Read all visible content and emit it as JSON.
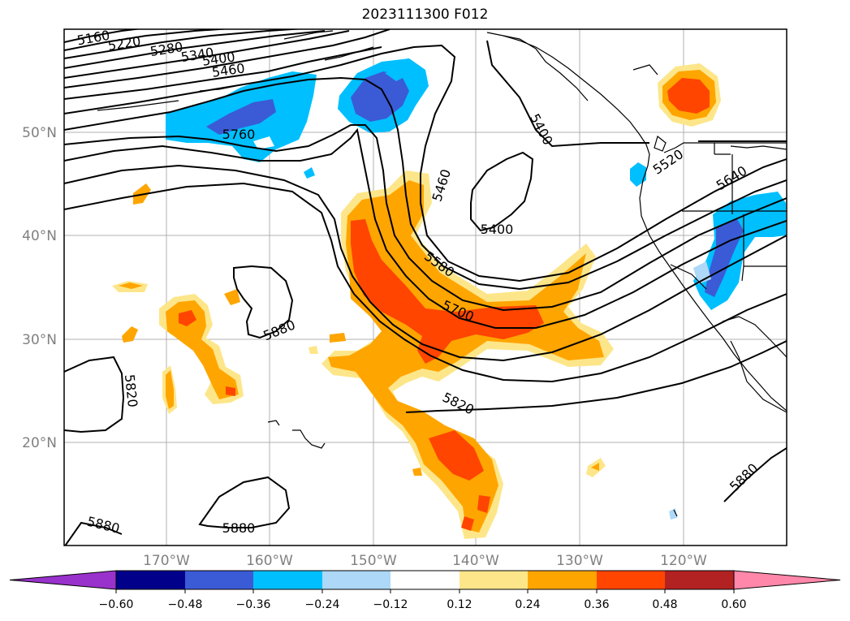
{
  "title": "2023111300 F012",
  "map": {
    "lat_labels": [
      "50°N",
      "40°N",
      "30°N",
      "20°N"
    ],
    "lon_labels": [
      "170°W",
      "160°W",
      "150°W",
      "140°W",
      "130°W",
      "120°W"
    ],
    "contour_labels": [
      "5160",
      "5220",
      "5280",
      "5340",
      "5400",
      "5460",
      "5760",
      "5400",
      "5460",
      "5400",
      "5520",
      "5640",
      "5580",
      "5700",
      "5880",
      "5820",
      "5820",
      "5880",
      "5880",
      "5880"
    ],
    "fill_colors": {
      "pos_012": "#fde68a",
      "pos_024": "#ffa500",
      "pos_036": "#ff4500",
      "neg_024": "#00bfff",
      "neg_036": "#3b5bd6",
      "neg_012": "#add8f7"
    },
    "coastline_color": "#000000",
    "contour_color": "#000000",
    "grid_color": "#b0b0b0"
  },
  "colorbar": {
    "ticks": [
      "−0.60",
      "−0.48",
      "−0.36",
      "−0.24",
      "−0.12",
      "0.12",
      "0.24",
      "0.36",
      "0.48",
      "0.60"
    ],
    "colors": [
      "#9932cc",
      "#00008b",
      "#3b5bd6",
      "#00bfff",
      "#add8f7",
      "#ffffff",
      "#fde68a",
      "#ffa500",
      "#ff4500",
      "#b22222",
      "#ff88aa"
    ]
  }
}
